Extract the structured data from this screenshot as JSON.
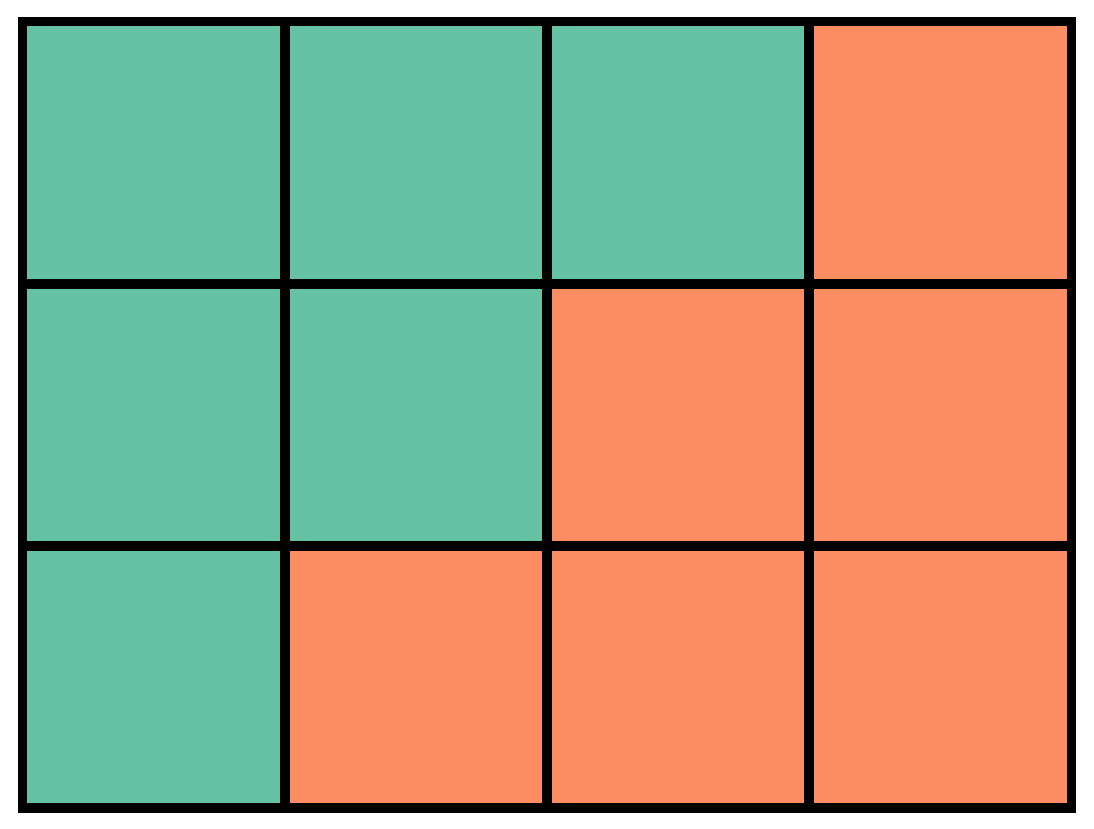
{
  "colors": {
    "green": "#66c2a5",
    "orange": "#fc8d62",
    "border": "#000000",
    "background": "#ffffff"
  },
  "grid": {
    "rows": 3,
    "columns": 4,
    "cells": [
      [
        "green",
        "green",
        "green",
        "orange"
      ],
      [
        "green",
        "green",
        "orange",
        "orange"
      ],
      [
        "green",
        "orange",
        "orange",
        "orange"
      ]
    ]
  }
}
